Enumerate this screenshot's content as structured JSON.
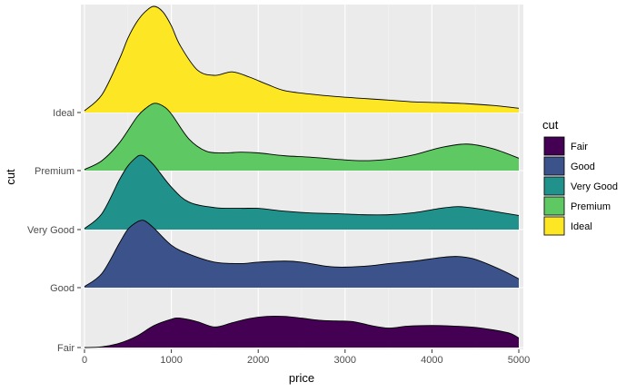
{
  "chart_data": {
    "type": "ridgeline",
    "xlabel": "price",
    "ylabel": "cut",
    "xlim": [
      0,
      5000
    ],
    "x_ticks": [
      0,
      1000,
      2000,
      3000,
      4000,
      5000
    ],
    "x_tick_labels": [
      "0",
      "1000",
      "2000",
      "3000",
      "4000",
      "5000"
    ],
    "categories": [
      "Fair",
      "Good",
      "Very Good",
      "Premium",
      "Ideal"
    ],
    "grid": true,
    "legend_position": "right",
    "legend": {
      "title": "cut",
      "entries": [
        "Fair",
        "Good",
        "Very Good",
        "Premium",
        "Ideal"
      ]
    },
    "series": [
      {
        "name": "Fair",
        "color": "#440154",
        "x": [
          0,
          200,
          400,
          600,
          800,
          1000,
          1100,
          1300,
          1500,
          1700,
          1900,
          2100,
          2300,
          2500,
          2700,
          2900,
          3100,
          3300,
          3500,
          3700,
          3900,
          4100,
          4300,
          4500,
          4700,
          4900,
          5000
        ],
        "density": [
          0.0,
          0.02,
          0.12,
          0.32,
          0.62,
          0.8,
          0.83,
          0.73,
          0.58,
          0.7,
          0.82,
          0.88,
          0.88,
          0.83,
          0.77,
          0.75,
          0.73,
          0.62,
          0.55,
          0.6,
          0.62,
          0.62,
          0.6,
          0.57,
          0.5,
          0.4,
          0.27
        ]
      },
      {
        "name": "Good",
        "color": "#3b528b",
        "x": [
          0,
          200,
          400,
          500,
          600,
          650,
          700,
          800,
          1000,
          1200,
          1500,
          1800,
          2000,
          2300,
          2500,
          2800,
          3000,
          3300,
          3500,
          3800,
          4100,
          4300,
          4500,
          4800,
          5000
        ],
        "density": [
          0.03,
          0.4,
          1.25,
          1.65,
          1.85,
          1.9,
          1.88,
          1.68,
          1.2,
          0.95,
          0.72,
          0.68,
          0.72,
          0.75,
          0.72,
          0.6,
          0.58,
          0.62,
          0.68,
          0.75,
          0.85,
          0.88,
          0.8,
          0.5,
          0.25
        ]
      },
      {
        "name": "Very Good",
        "color": "#21918c",
        "x": [
          0,
          200,
          400,
          500,
          600,
          650,
          700,
          800,
          1000,
          1200,
          1500,
          1800,
          2000,
          2300,
          2600,
          2900,
          3200,
          3500,
          3800,
          4100,
          4300,
          4500,
          4800,
          5000
        ],
        "density": [
          0.03,
          0.45,
          1.4,
          1.8,
          2.05,
          2.1,
          2.05,
          1.82,
          1.2,
          0.78,
          0.62,
          0.6,
          0.6,
          0.52,
          0.47,
          0.45,
          0.42,
          0.42,
          0.48,
          0.6,
          0.65,
          0.6,
          0.48,
          0.4
        ]
      },
      {
        "name": "Premium",
        "color": "#5ec962",
        "x": [
          0,
          200,
          400,
          600,
          700,
          800,
          900,
          1000,
          1200,
          1400,
          1600,
          1800,
          2000,
          2300,
          2600,
          2900,
          3200,
          3500,
          3800,
          4100,
          4400,
          4700,
          5000
        ],
        "density": [
          0.03,
          0.28,
          0.78,
          1.5,
          1.75,
          1.9,
          1.83,
          1.6,
          0.9,
          0.55,
          0.5,
          0.52,
          0.5,
          0.42,
          0.38,
          0.32,
          0.28,
          0.32,
          0.45,
          0.65,
          0.75,
          0.62,
          0.35
        ]
      },
      {
        "name": "Ideal",
        "color": "#fde725",
        "x": [
          0,
          200,
          400,
          500,
          600,
          700,
          800,
          900,
          1000,
          1100,
          1300,
          1500,
          1700,
          1900,
          2100,
          2300,
          2600,
          2900,
          3200,
          3500,
          3800,
          4100,
          4400,
          4700,
          5000
        ],
        "density": [
          0.05,
          0.5,
          1.5,
          2.1,
          2.55,
          2.85,
          3.0,
          2.85,
          2.45,
          1.9,
          1.2,
          1.05,
          1.15,
          1.0,
          0.8,
          0.62,
          0.52,
          0.45,
          0.4,
          0.35,
          0.3,
          0.28,
          0.25,
          0.2,
          0.12
        ]
      }
    ]
  }
}
